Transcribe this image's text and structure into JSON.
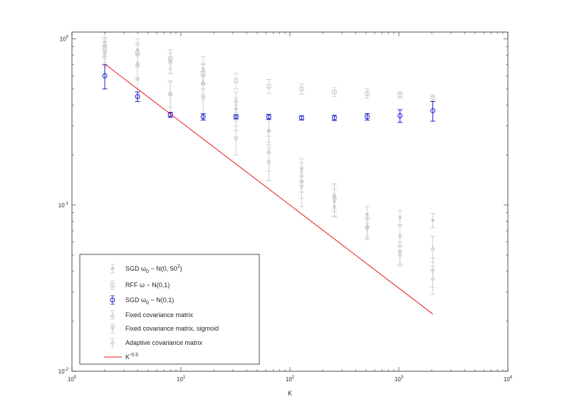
{
  "chart_data": {
    "type": "scatter",
    "title": "",
    "xlabel": "K",
    "ylabel": "",
    "xscale": "log",
    "yscale": "log",
    "xlim": [
      1,
      10000
    ],
    "ylim": [
      0.01,
      1.1
    ],
    "grid": false,
    "legend_position": "bottom-left",
    "x_ticks": [
      {
        "value": 1,
        "base": "10",
        "exp": "0"
      },
      {
        "value": 10,
        "base": "10",
        "exp": "1"
      },
      {
        "value": 100,
        "base": "10",
        "exp": "2"
      },
      {
        "value": 1000,
        "base": "10",
        "exp": "3"
      },
      {
        "value": 10000,
        "base": "10",
        "exp": "4"
      }
    ],
    "y_ticks": [
      {
        "value": 0.01,
        "base": "10",
        "exp": "-2"
      },
      {
        "value": 0.1,
        "base": "10",
        "exp": "-1"
      },
      {
        "value": 1,
        "base": "10",
        "exp": "0"
      }
    ],
    "series": [
      {
        "name": "SGD ω₀ ~ N(0, 50²)",
        "legend_parts": {
          "pre": "SGD ω",
          "sub": "0",
          "mid": " ~ N(0, 50",
          "sup": "2",
          "post": ")"
        },
        "marker": "star",
        "color": "#c8c8c8",
        "x": [
          2,
          4,
          8,
          16,
          32,
          64,
          128,
          256,
          512,
          1024,
          2048
        ],
        "y": [
          0.96,
          0.86,
          0.74,
          0.66,
          0.38,
          0.28,
          0.165,
          0.098,
          0.088,
          0.084,
          0.081
        ],
        "err": [
          0.14,
          0.14,
          0.12,
          0.12,
          0.06,
          0.04,
          0.025,
          0.012,
          0.01,
          0.009,
          0.008
        ]
      },
      {
        "name": "RFF ω ~ N(0,1)",
        "legend_parts": {
          "pre": "RFF ω ~ N(0,1)",
          "sub": "",
          "mid": "",
          "sup": "",
          "post": ""
        },
        "marker": "square",
        "color": "#c8c8c8",
        "x": [
          2,
          4,
          8,
          16,
          32,
          64,
          128,
          256,
          512,
          1024,
          2048
        ],
        "y": [
          0.88,
          0.82,
          0.76,
          0.62,
          0.56,
          0.52,
          0.5,
          0.48,
          0.47,
          0.46,
          0.44
        ],
        "err": [
          0.12,
          0.12,
          0.1,
          0.09,
          0.06,
          0.05,
          0.035,
          0.03,
          0.03,
          0.02,
          0.02
        ]
      },
      {
        "name": "SGD ω₀ ~ N(0,1)",
        "legend_parts": {
          "pre": "SGD ω",
          "sub": "0",
          "mid": " ~ N(0,1)",
          "sup": "",
          "post": ""
        },
        "marker": "circle",
        "color": "#1f1fd1",
        "x": [
          2,
          4,
          8,
          16,
          32,
          64,
          128,
          256,
          512,
          1024,
          2048
        ],
        "y": [
          0.6,
          0.45,
          0.35,
          0.34,
          0.34,
          0.34,
          0.335,
          0.335,
          0.34,
          0.345,
          0.37
        ],
        "err": [
          0.1,
          0.03,
          0.012,
          0.015,
          0.01,
          0.012,
          0.01,
          0.012,
          0.015,
          0.03,
          0.05
        ]
      },
      {
        "name": "Fixed covariance matrix",
        "legend_parts": {
          "pre": "Fixed covariance matrix",
          "sub": "",
          "mid": "",
          "sup": "",
          "post": ""
        },
        "marker": "triangle-up",
        "color": "#c8c8c8",
        "x": [
          2,
          4,
          8,
          16,
          32,
          64,
          128,
          256,
          512,
          1024,
          2048
        ],
        "y": [
          0.8,
          0.58,
          0.47,
          0.55,
          0.34,
          0.21,
          0.14,
          0.115,
          0.075,
          0.066,
          0.055
        ],
        "err": [
          0.12,
          0.1,
          0.08,
          0.09,
          0.06,
          0.05,
          0.03,
          0.02,
          0.01,
          0.01,
          0.01
        ]
      },
      {
        "name": "Fixed covariance matrix, sigmoid",
        "legend_parts": {
          "pre": "Fixed covariance matrix, sigmoid",
          "sub": "",
          "mid": "",
          "sup": "",
          "post": ""
        },
        "marker": "triangle-down",
        "color": "#c8c8c8",
        "x": [
          2,
          4,
          8,
          16,
          32,
          64,
          128,
          256,
          512,
          1024,
          2048
        ],
        "y": [
          0.9,
          0.8,
          0.46,
          0.44,
          0.25,
          0.18,
          0.128,
          0.105,
          0.072,
          0.052,
          0.04
        ],
        "err": [
          0.12,
          0.12,
          0.1,
          0.1,
          0.05,
          0.04,
          0.03,
          0.02,
          0.01,
          0.008,
          0.008
        ]
      },
      {
        "name": "Adaptive covariance matrix",
        "legend_parts": {
          "pre": "Adaptive covariance matrix",
          "sub": "",
          "mid": "",
          "sup": "",
          "post": ""
        },
        "marker": "diamond",
        "color": "#c8c8c8",
        "x": [
          2,
          4,
          8,
          16,
          32,
          64,
          128,
          256,
          512,
          1024,
          2048
        ],
        "y": [
          0.84,
          0.7,
          0.72,
          0.6,
          0.42,
          0.28,
          0.15,
          0.112,
          0.073,
          0.05,
          0.036
        ],
        "err": [
          0.12,
          0.12,
          0.1,
          0.1,
          0.06,
          0.05,
          0.03,
          0.02,
          0.01,
          0.007,
          0.007
        ]
      },
      {
        "name": "K^-0.5",
        "legend_parts": {
          "pre": "K",
          "sub": "",
          "mid": "",
          "sup": "-0.5",
          "post": ""
        },
        "marker": "line",
        "color": "#e8191c",
        "x": [
          2,
          2048
        ],
        "y": [
          0.707,
          0.0221
        ],
        "err": []
      }
    ]
  }
}
